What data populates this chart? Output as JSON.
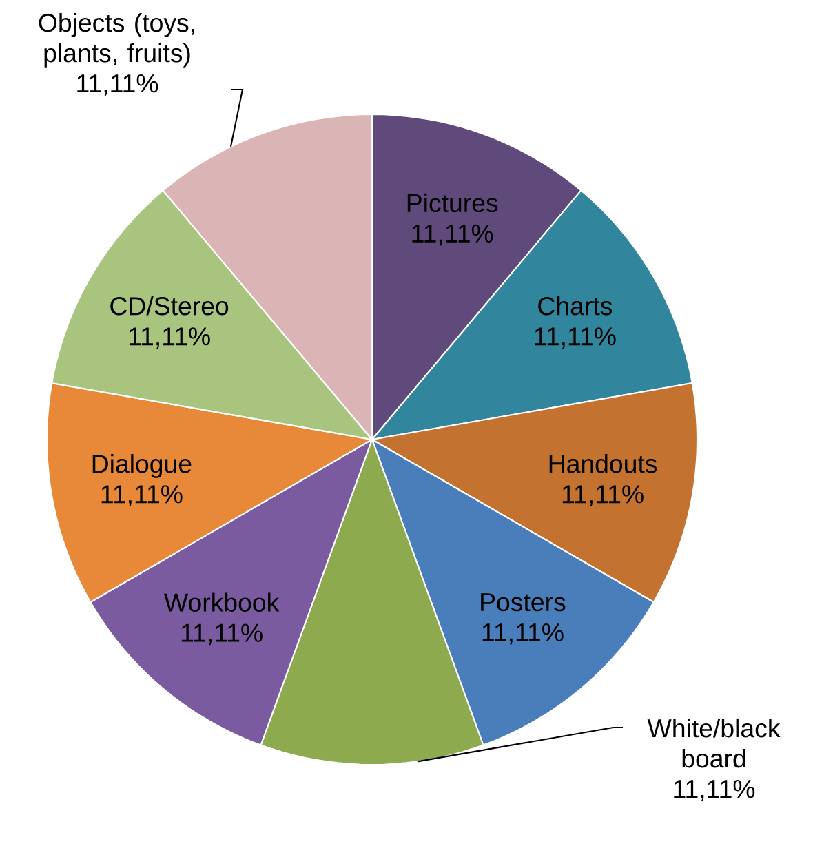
{
  "chart_data": {
    "type": "pie",
    "categories": [
      "Pictures",
      "Charts",
      "Handouts",
      "Posters",
      "White/black board",
      "Workbook",
      "Dialogue",
      "CD/Stereo",
      "Objects (toys, plants, fruits)"
    ],
    "values": [
      11.11,
      11.11,
      11.11,
      11.11,
      11.11,
      11.11,
      11.11,
      11.11,
      11.11
    ],
    "value_labels": [
      "11,11%",
      "11,11%",
      "11,11%",
      "11,11%",
      "11,11%",
      "11,11%",
      "11,11%",
      "11,11%",
      "11,11%"
    ],
    "colors": [
      "#604a7b",
      "#31859c",
      "#c3732f",
      "#4a7ebb",
      "#8eaa4f",
      "#7b5ba0",
      "#e8893a",
      "#a9c47f",
      "#dbb5b5"
    ]
  }
}
